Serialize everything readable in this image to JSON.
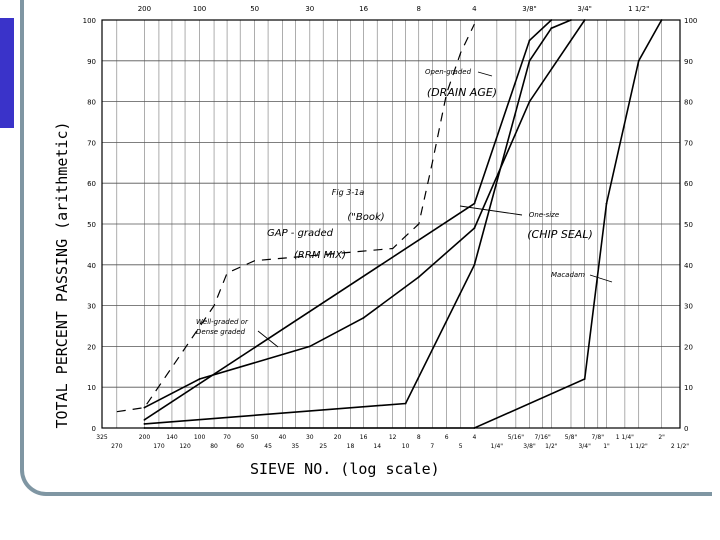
{
  "chart_data": {
    "type": "line",
    "title": "",
    "xlabel": "SIEVE NO. (log scale)",
    "ylabel": "TOTAL PERCENT PASSING (arithmetic)",
    "x_scale": "log",
    "ylim": [
      0,
      100
    ],
    "y_ticks": [
      0,
      10,
      20,
      30,
      40,
      50,
      60,
      70,
      80,
      90,
      100
    ],
    "grid": true,
    "legend": "none",
    "series": [
      {
        "name": "Open-graded",
        "x": [
          "200",
          "4",
          "3/8\"",
          "1/2\""
        ],
        "y": [
          2,
          55,
          95,
          100
        ]
      },
      {
        "name": "One-size",
        "x": [
          "200",
          "10",
          "4",
          "3/8\"",
          "1/2\"",
          "5/8\""
        ],
        "y": [
          1,
          6,
          40,
          90,
          98,
          100
        ]
      },
      {
        "name": "Macadam",
        "x": [
          "200",
          "4",
          "3/4\"",
          "1\"",
          "1 1/2\"",
          "2\""
        ],
        "y": [
          0,
          0,
          12,
          55,
          90,
          100
        ]
      },
      {
        "name": "Well-graded or Dense graded",
        "x": [
          "200",
          "100",
          "30",
          "16",
          "8",
          "4",
          "3/8\"",
          "3/4\""
        ],
        "y": [
          5,
          12,
          20,
          27,
          37,
          49,
          80,
          100
        ]
      }
    ],
    "top_tick_labels": [
      "200",
      "100",
      "50",
      "30",
      "16",
      "8",
      "4",
      "3/8\"",
      "3/4\"",
      "1 1/2\""
    ],
    "bottom_tick_labels": [
      "325",
      "270",
      "200",
      "170",
      "140",
      "120",
      "100",
      "80",
      "70",
      "60",
      "50",
      "45",
      "40",
      "35",
      "30",
      "25",
      "20",
      "18",
      "16",
      "14",
      "12",
      "10",
      "8",
      "7",
      "6",
      "5",
      "4",
      "1/4\"",
      "5/16\"",
      "3/8\"",
      "7/16\"",
      "1/2\"",
      "5/8\"",
      "3/4\"",
      "7/8\"",
      "1\"",
      "1 1/4\"",
      "1 1/2\"",
      "2\"",
      "2 1/2\""
    ],
    "handwritten_annotations": [
      "(DRAIN AGE)",
      "(CHIP SEAL)",
      "GAP - graded",
      "(RRM MIX)",
      "(\"Book)",
      "Fig 3-1a"
    ],
    "annotations": [
      "Open-graded",
      "One-size",
      "Macadam",
      "Well-graded or Dense graded"
    ]
  }
}
